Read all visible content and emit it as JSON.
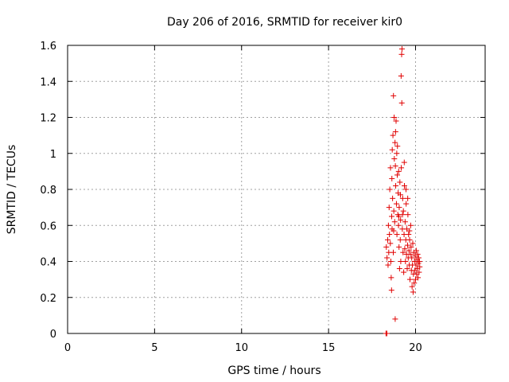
{
  "chart_data": {
    "type": "scatter",
    "title": "Day 206 of 2016, SRMTID for receiver kir0",
    "xlabel": "GPS time / hours",
    "ylabel": "SRMTID / TECUs",
    "xlim": [
      0,
      24
    ],
    "ylim": [
      0,
      1.6
    ],
    "xticks": [
      0,
      5,
      10,
      15,
      20
    ],
    "yticks": [
      0,
      0.2,
      0.4,
      0.6,
      0.8,
      1,
      1.2,
      1.4,
      1.6
    ],
    "xtick_labels": [
      "0",
      "5",
      "10",
      "15",
      "20"
    ],
    "ytick_labels": [
      "0",
      "0.2",
      "0.4",
      "0.6",
      "0.8",
      "1",
      "1.2",
      "1.4",
      "1.6"
    ],
    "grid": true,
    "marker": "+",
    "color": "#e00000",
    "points": [
      [
        18.3,
        0.0
      ],
      [
        18.35,
        0.0
      ],
      [
        18.32,
        0.48
      ],
      [
        18.36,
        0.42
      ],
      [
        18.4,
        0.52
      ],
      [
        18.42,
        0.38
      ],
      [
        18.44,
        0.6
      ],
      [
        18.46,
        0.45
      ],
      [
        18.48,
        0.7
      ],
      [
        18.5,
        0.55
      ],
      [
        18.52,
        0.8
      ],
      [
        18.55,
        0.5
      ],
      [
        18.56,
        0.92
      ],
      [
        18.58,
        0.4
      ],
      [
        18.6,
        0.31
      ],
      [
        18.62,
        0.24
      ],
      [
        18.63,
        0.65
      ],
      [
        18.65,
        0.58
      ],
      [
        18.66,
        1.02
      ],
      [
        18.68,
        0.75
      ],
      [
        18.7,
        1.1
      ],
      [
        18.72,
        0.45
      ],
      [
        18.73,
        1.32
      ],
      [
        18.75,
        0.68
      ],
      [
        18.77,
        1.2
      ],
      [
        18.78,
        0.97
      ],
      [
        18.8,
        0.62
      ],
      [
        18.82,
        1.06
      ],
      [
        18.83,
        0.08
      ],
      [
        18.85,
        1.12
      ],
      [
        18.86,
        0.82
      ],
      [
        18.88,
        1.18
      ],
      [
        18.9,
        0.72
      ],
      [
        18.92,
        1.0
      ],
      [
        18.93,
        0.55
      ],
      [
        18.95,
        0.88
      ],
      [
        18.96,
        1.04
      ],
      [
        18.98,
        0.66
      ],
      [
        19.0,
        0.78
      ],
      [
        19.02,
        0.6
      ],
      [
        19.03,
        0.9
      ],
      [
        19.05,
        0.48
      ],
      [
        19.06,
        0.7
      ],
      [
        19.08,
        0.36
      ],
      [
        19.1,
        0.84
      ],
      [
        19.12,
        0.52
      ],
      [
        19.14,
        0.63
      ],
      [
        19.15,
        0.4
      ],
      [
        19.17,
        1.43
      ],
      [
        19.18,
        0.92
      ],
      [
        19.2,
        1.55
      ],
      [
        19.21,
        1.28
      ],
      [
        19.22,
        1.58
      ],
      [
        19.24,
        0.58
      ],
      [
        19.26,
        0.75
      ],
      [
        19.28,
        0.45
      ],
      [
        19.3,
        0.68
      ],
      [
        19.32,
        0.34
      ],
      [
        19.34,
        0.55
      ],
      [
        19.36,
        0.82
      ],
      [
        19.38,
        0.47
      ],
      [
        19.4,
        0.62
      ],
      [
        19.42,
        0.4
      ],
      [
        19.44,
        0.52
      ],
      [
        19.46,
        0.72
      ],
      [
        19.48,
        0.44
      ],
      [
        19.5,
        0.58
      ],
      [
        19.52,
        0.36
      ],
      [
        19.54,
        0.49
      ],
      [
        19.56,
        0.66
      ],
      [
        19.58,
        0.42
      ],
      [
        19.6,
        0.55
      ],
      [
        19.62,
        0.46
      ],
      [
        19.64,
        0.38
      ],
      [
        19.66,
        0.52
      ],
      [
        19.68,
        0.3
      ],
      [
        19.7,
        0.44
      ],
      [
        19.72,
        0.6
      ],
      [
        19.74,
        0.48
      ],
      [
        19.76,
        0.35
      ],
      [
        19.78,
        0.42
      ],
      [
        19.8,
        0.26
      ],
      [
        19.82,
        0.38
      ],
      [
        19.84,
        0.5
      ],
      [
        19.86,
        0.23
      ],
      [
        19.88,
        0.33
      ],
      [
        19.9,
        0.45
      ],
      [
        19.92,
        0.28
      ],
      [
        19.94,
        0.4
      ],
      [
        19.96,
        0.35
      ],
      [
        19.98,
        0.43
      ],
      [
        20.0,
        0.3
      ],
      [
        20.02,
        0.38
      ],
      [
        20.04,
        0.46
      ],
      [
        20.06,
        0.33
      ],
      [
        20.08,
        0.41
      ],
      [
        20.1,
        0.36
      ],
      [
        20.12,
        0.44
      ],
      [
        20.14,
        0.31
      ],
      [
        20.16,
        0.39
      ],
      [
        20.18,
        0.42
      ],
      [
        20.2,
        0.34
      ],
      [
        20.22,
        0.4
      ],
      [
        20.24,
        0.37
      ],
      [
        19.45,
        0.8
      ],
      [
        19.35,
        0.95
      ],
      [
        19.25,
        0.66
      ],
      [
        19.55,
        0.75
      ],
      [
        19.65,
        0.57
      ],
      [
        18.64,
        0.86
      ],
      [
        18.84,
        0.93
      ],
      [
        18.74,
        0.57
      ],
      [
        19.04,
        0.65
      ],
      [
        19.13,
        0.77
      ]
    ]
  }
}
